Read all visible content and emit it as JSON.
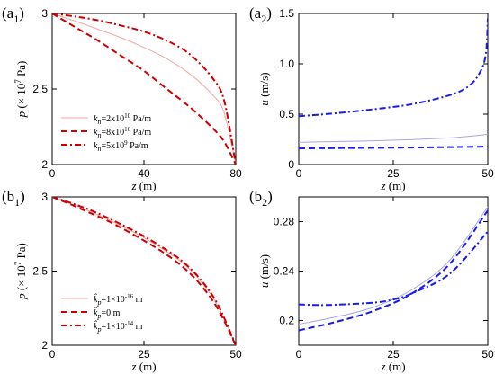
{
  "chart_data": [
    {
      "type": "line",
      "panel_label": "(a1)",
      "panel_letter": "a",
      "panel_sub": "1",
      "xlabel": "z (m)",
      "ylabel": "p (× 10^7 Pa)",
      "xlim": [
        0,
        80
      ],
      "ylim": [
        2,
        3
      ],
      "x_ticks": [
        0,
        40,
        80
      ],
      "x_tick_labels": [
        "0",
        "40",
        "80"
      ],
      "y_ticks": [
        2,
        2.5,
        3
      ],
      "y_tick_labels": [
        "2",
        "2.5",
        "3"
      ],
      "grid": false,
      "legend": {
        "placement": "bottom-left",
        "entries": [
          {
            "label": "k_n=2x10^10 Pa/m",
            "sym": "k",
            "sub": "n",
            "pre": "=2x10",
            "sup": "10",
            "post": " Pa/m"
          },
          {
            "label": "k_n=8x10^10 Pa/m",
            "sym": "k",
            "sub": "n",
            "pre": "=8x10",
            "sup": "10",
            "post": " Pa/m"
          },
          {
            "label": "k_n=5x10^9 Pa/m",
            "sym": "k",
            "sub": "n",
            "pre": "=5x10",
            "sup": "9",
            "post": " Pa/m"
          }
        ]
      },
      "series": [
        {
          "color": "#f4a6a6",
          "dash": "solid",
          "width": 1,
          "x": [
            0,
            10,
            20,
            30,
            40,
            50,
            60,
            70,
            75,
            80
          ],
          "y": [
            3.0,
            2.95,
            2.895,
            2.84,
            2.775,
            2.7,
            2.6,
            2.46,
            2.34,
            2.0
          ]
        },
        {
          "color": "#cc0000",
          "dash": "dash",
          "width": 2,
          "x": [
            0,
            10,
            20,
            30,
            40,
            50,
            60,
            70,
            75,
            80
          ],
          "y": [
            3.0,
            2.91,
            2.82,
            2.72,
            2.62,
            2.5,
            2.38,
            2.24,
            2.15,
            2.0
          ]
        },
        {
          "color": "#cc0000",
          "dash": "dashdot",
          "width": 2,
          "x": [
            0,
            10,
            20,
            30,
            40,
            50,
            60,
            70,
            75,
            80
          ],
          "y": [
            3.0,
            2.98,
            2.955,
            2.92,
            2.88,
            2.82,
            2.73,
            2.57,
            2.42,
            2.0
          ]
        }
      ]
    },
    {
      "type": "line",
      "panel_label": "(a2)",
      "panel_letter": "a",
      "panel_sub": "2",
      "xlabel": "z (m)",
      "ylabel": "u (m/s)",
      "xlim": [
        0,
        50
      ],
      "ylim": [
        0,
        1.5
      ],
      "x_ticks": [
        0,
        25,
        50
      ],
      "x_tick_labels": [
        "0",
        "25",
        "50"
      ],
      "y_ticks": [
        0,
        0.5,
        1.0,
        1.5
      ],
      "y_tick_labels": [
        "0",
        "0.5",
        "1.0",
        "1.5"
      ],
      "grid": false,
      "series": [
        {
          "color": "#a6a6e6",
          "dash": "solid",
          "width": 1,
          "x": [
            0,
            10,
            20,
            30,
            40,
            45,
            50
          ],
          "y": [
            0.22,
            0.228,
            0.236,
            0.248,
            0.265,
            0.28,
            0.3
          ]
        },
        {
          "color": "#1a1aee",
          "dash": "dash",
          "width": 2,
          "x": [
            0,
            10,
            20,
            30,
            40,
            50
          ],
          "y": [
            0.16,
            0.163,
            0.166,
            0.169,
            0.173,
            0.178
          ]
        },
        {
          "color": "#1a1aee",
          "dash": "dashdot",
          "width": 2,
          "x": [
            0,
            10,
            20,
            30,
            40,
            45,
            48,
            49.5,
            50
          ],
          "y": [
            0.48,
            0.51,
            0.55,
            0.6,
            0.69,
            0.78,
            0.92,
            1.1,
            1.45
          ]
        }
      ]
    },
    {
      "type": "line",
      "panel_label": "(b1)",
      "panel_letter": "b",
      "panel_sub": "1",
      "xlabel": "z (m)",
      "ylabel": "p (× 10^7 Pa)",
      "xlim": [
        0,
        50
      ],
      "ylim": [
        2,
        3
      ],
      "x_ticks": [
        0,
        25,
        50
      ],
      "x_tick_labels": [
        "0",
        "25",
        "50"
      ],
      "y_ticks": [
        2,
        2.5,
        3
      ],
      "y_tick_labels": [
        "2",
        "2.5",
        "3"
      ],
      "grid": false,
      "legend": {
        "placement": "bottom-left",
        "entries": [
          {
            "label": "k̂_p=1×10^-16 m",
            "sym": "k̂",
            "sub": "p",
            "pre": "=1×10",
            "sup": "-16",
            "post": " m"
          },
          {
            "label": "k̂_p=0 m",
            "sym": "k̂",
            "sub": "p",
            "pre": "=0 m",
            "sup": "",
            "post": ""
          },
          {
            "label": "k̂_p=1×10^-14 m",
            "sym": "k̂",
            "sub": "p",
            "pre": "=1×10",
            "sup": "-14",
            "post": " m"
          }
        ]
      },
      "series": [
        {
          "color": "#f4a6a6",
          "dash": "solid",
          "width": 1,
          "x": [
            0,
            5,
            10,
            15,
            20,
            25,
            30,
            35,
            40,
            45,
            50
          ],
          "y": [
            3.0,
            2.955,
            2.905,
            2.85,
            2.79,
            2.725,
            2.65,
            2.565,
            2.445,
            2.27,
            2.0
          ]
        },
        {
          "color": "#cc0000",
          "dash": "dash",
          "width": 2,
          "x": [
            0,
            5,
            10,
            15,
            20,
            25,
            30,
            35,
            40,
            45,
            50
          ],
          "y": [
            3.0,
            2.95,
            2.895,
            2.84,
            2.775,
            2.705,
            2.63,
            2.54,
            2.42,
            2.25,
            2.0
          ]
        },
        {
          "color": "#cc0000",
          "dash": "dashdot",
          "width": 2,
          "x": [
            0,
            5,
            10,
            15,
            20,
            25,
            30,
            35,
            40,
            45,
            50
          ],
          "y": [
            3.0,
            2.96,
            2.915,
            2.86,
            2.8,
            2.735,
            2.66,
            2.575,
            2.455,
            2.28,
            2.0
          ]
        }
      ]
    },
    {
      "type": "line",
      "panel_label": "(b2)",
      "panel_letter": "b",
      "panel_sub": "2",
      "xlabel": "z (m)",
      "ylabel": "u (m/s)",
      "xlim": [
        0,
        50
      ],
      "ylim": [
        0.18,
        0.3
      ],
      "x_ticks": [
        0,
        25,
        50
      ],
      "x_tick_labels": [
        "0",
        "25",
        "50"
      ],
      "y_ticks": [
        0.2,
        0.24,
        0.28
      ],
      "y_tick_labels": [
        "0.2",
        "0.24",
        "0.28"
      ],
      "grid": false,
      "series": [
        {
          "color": "#a6a6e6",
          "dash": "solid",
          "width": 1,
          "x": [
            0,
            10,
            20,
            30,
            40,
            50
          ],
          "y": [
            0.197,
            0.203,
            0.211,
            0.225,
            0.249,
            0.292
          ]
        },
        {
          "color": "#1a1aee",
          "dash": "dash",
          "width": 2,
          "x": [
            0,
            10,
            20,
            30,
            40,
            50
          ],
          "y": [
            0.192,
            0.199,
            0.208,
            0.222,
            0.246,
            0.289
          ]
        },
        {
          "color": "#1a1aee",
          "dash": "dashdot",
          "width": 2,
          "x": [
            0,
            5,
            10,
            20,
            25,
            30,
            40,
            50
          ],
          "y": [
            0.213,
            0.2125,
            0.2128,
            0.2145,
            0.217,
            0.222,
            0.238,
            0.272
          ]
        }
      ]
    }
  ]
}
